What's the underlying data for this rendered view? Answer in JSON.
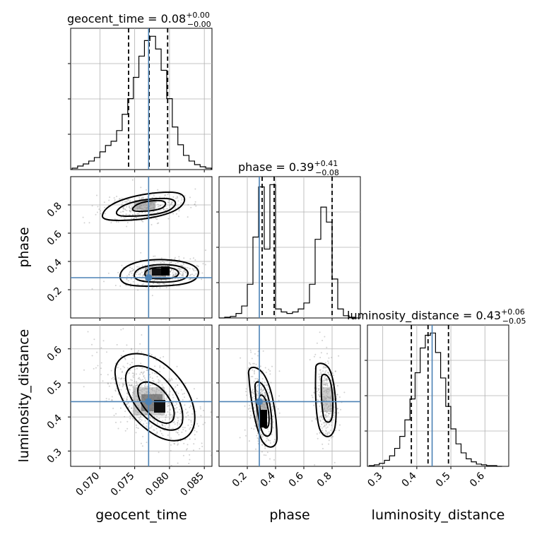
{
  "chart_data": {
    "type": "corner",
    "parameters": [
      "geocent_time",
      "phase",
      "luminosity_distance"
    ],
    "axis_labels": [
      "geocent_time",
      "phase",
      "luminosity_distance"
    ],
    "ranges": [
      [
        0.0658,
        0.0861
      ],
      [
        0.0,
        1.0
      ],
      [
        0.255,
        0.67
      ]
    ],
    "ticks": [
      {
        "values": [
          0.07,
          0.075,
          0.08,
          0.085
        ],
        "labels": [
          "0.070",
          "0.075",
          "0.080",
          "0.085"
        ]
      },
      {
        "values": [
          0.2,
          0.4,
          0.6,
          0.8
        ],
        "labels": [
          "0.2",
          "0.4",
          "0.6",
          "0.8"
        ]
      },
      {
        "values": [
          0.3,
          0.4,
          0.5,
          0.6
        ],
        "labels": [
          "0.3",
          "0.4",
          "0.5",
          "0.6"
        ]
      }
    ],
    "titles": [
      {
        "name": "geocent_time",
        "median": "0.08",
        "plus": "+0.00",
        "minus": "−0.00"
      },
      {
        "name": "phase",
        "median": "0.39",
        "plus": "+0.41",
        "minus": "−0.08"
      },
      {
        "name": "luminosity_distance",
        "median": "0.43",
        "plus": "+0.06",
        "minus": "−0.05"
      }
    ],
    "truths": [
      0.077,
      0.285,
      0.445
    ],
    "quantiles": [
      [
        0.07412,
        0.07708,
        0.07973
      ],
      [
        0.305,
        0.39,
        0.8
      ],
      [
        0.384,
        0.433,
        0.493
      ]
    ],
    "histograms": [
      {
        "edges": [
          0.066,
          0.0668,
          0.0676,
          0.0684,
          0.0692,
          0.07,
          0.0708,
          0.0716,
          0.0724,
          0.0732,
          0.074,
          0.0748,
          0.0756,
          0.0764,
          0.0772,
          0.078,
          0.0788,
          0.0796,
          0.0804,
          0.0812,
          0.082,
          0.0828,
          0.0836,
          0.0844,
          0.0852,
          0.086
        ],
        "counts": [
          2,
          5,
          8,
          12,
          17,
          25,
          34,
          40,
          55,
          78,
          100,
          130,
          160,
          182,
          188,
          170,
          140,
          100,
          60,
          35,
          20,
          12,
          7,
          4,
          2
        ]
      },
      {
        "edges": [
          0.0,
          0.04,
          0.08,
          0.12,
          0.16,
          0.2,
          0.24,
          0.28,
          0.32,
          0.36,
          0.4,
          0.44,
          0.48,
          0.52,
          0.56,
          0.6,
          0.64,
          0.68,
          0.72,
          0.76,
          0.8,
          0.84,
          0.88,
          0.92,
          0.96,
          1.0
        ],
        "counts": [
          0,
          1,
          2,
          6,
          16,
          45,
          108,
          175,
          92,
          178,
          12,
          8,
          6,
          8,
          12,
          20,
          45,
          105,
          148,
          128,
          52,
          12,
          3,
          1,
          0
        ]
      },
      {
        "edges": [
          0.26,
          0.275,
          0.29,
          0.305,
          0.32,
          0.335,
          0.35,
          0.365,
          0.38,
          0.395,
          0.41,
          0.425,
          0.44,
          0.455,
          0.47,
          0.485,
          0.5,
          0.515,
          0.53,
          0.545,
          0.56,
          0.575,
          0.59,
          0.605,
          0.62,
          0.635,
          0.65
        ],
        "counts": [
          1,
          2,
          4,
          8,
          14,
          24,
          40,
          62,
          90,
          125,
          158,
          175,
          178,
          152,
          118,
          80,
          50,
          30,
          18,
          10,
          6,
          3,
          2,
          1,
          1,
          0
        ]
      }
    ],
    "scatter_samples_note": "",
    "grid": true
  }
}
